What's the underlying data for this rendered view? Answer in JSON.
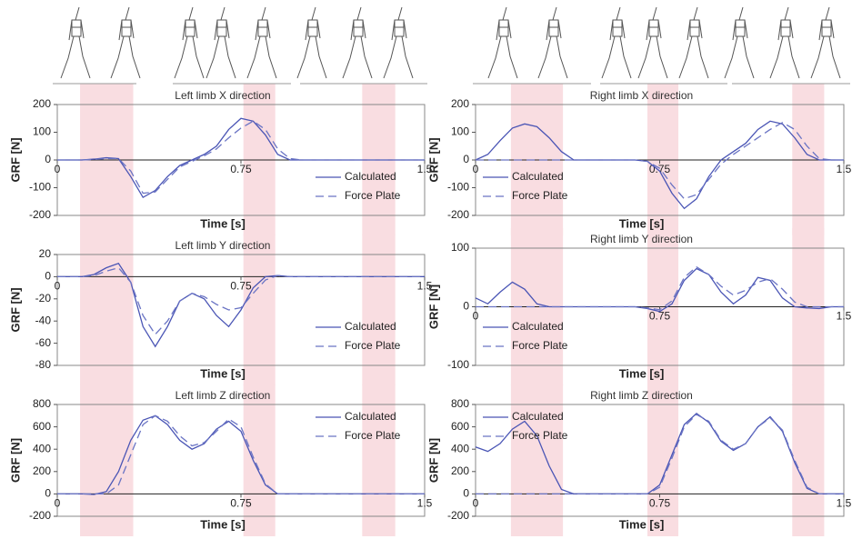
{
  "chart_data": [
    {
      "type": "line",
      "title": "Left limb X direction",
      "x_label": "Time [s]",
      "y_label": "GRF [N]",
      "x": [
        0,
        0.05,
        0.1,
        0.15,
        0.2,
        0.25,
        0.3,
        0.35,
        0.4,
        0.45,
        0.5,
        0.55,
        0.6,
        0.65,
        0.7,
        0.75,
        0.8,
        0.85,
        0.9,
        0.95,
        1,
        1.05,
        1.1,
        1.15,
        1.2,
        1.25,
        1.3,
        1.35,
        1.4,
        1.45,
        1.5
      ],
      "xlim": [
        0,
        1.5
      ],
      "xticks": [
        0,
        0.75,
        1.5
      ],
      "ylim": [
        -200,
        200
      ],
      "yticks": [
        -200,
        -100,
        0,
        100,
        200
      ],
      "legend": "lower right",
      "highlight_spans": [
        [
          0.093,
          0.31
        ],
        [
          0.76,
          0.89
        ],
        [
          1.245,
          1.38
        ]
      ],
      "highlight_color": "#f9dde1",
      "series": [
        {
          "name": "Calculated",
          "color": "#4a55b5",
          "line_style": "solid",
          "values": [
            0,
            0,
            0,
            3,
            8,
            5,
            -60,
            -135,
            -110,
            -60,
            -20,
            0,
            20,
            50,
            110,
            150,
            140,
            90,
            20,
            0,
            0,
            0,
            0,
            0,
            0,
            0,
            0,
            0,
            0,
            0,
            0
          ]
        },
        {
          "name": "Force Plate",
          "color": "#6a74c4",
          "line_style": "dashed",
          "values": [
            0,
            0,
            0,
            2,
            5,
            5,
            -40,
            -120,
            -115,
            -70,
            -25,
            -5,
            15,
            40,
            80,
            115,
            140,
            110,
            40,
            5,
            0,
            0,
            0,
            0,
            0,
            0,
            0,
            0,
            0,
            0,
            0
          ]
        }
      ]
    },
    {
      "type": "line",
      "title": "Left limb Y direction",
      "x_label": "Time [s]",
      "y_label": "GRF [N]",
      "x": [
        0,
        0.05,
        0.1,
        0.15,
        0.2,
        0.25,
        0.3,
        0.35,
        0.4,
        0.45,
        0.5,
        0.55,
        0.6,
        0.65,
        0.7,
        0.75,
        0.8,
        0.85,
        0.9,
        0.95,
        1,
        1.05,
        1.1,
        1.15,
        1.2,
        1.25,
        1.3,
        1.35,
        1.4,
        1.45,
        1.5
      ],
      "xlim": [
        0,
        1.5
      ],
      "xticks": [
        0,
        0.75,
        1.5
      ],
      "ylim": [
        -80,
        20
      ],
      "yticks": [
        -80,
        -60,
        -40,
        -20,
        0,
        20
      ],
      "legend": "lower right",
      "highlight_spans": [
        [
          0.093,
          0.31
        ],
        [
          0.76,
          0.89
        ],
        [
          1.245,
          1.38
        ]
      ],
      "highlight_color": "#f9dde1",
      "series": [
        {
          "name": "Calculated",
          "color": "#4a55b5",
          "line_style": "solid",
          "values": [
            0,
            0,
            0,
            2,
            8,
            12,
            -5,
            -45,
            -63,
            -45,
            -22,
            -15,
            -20,
            -35,
            -45,
            -30,
            -10,
            0,
            1,
            0,
            0,
            0,
            0,
            0,
            0,
            0,
            0,
            0,
            0,
            0,
            0
          ]
        },
        {
          "name": "Force Plate",
          "color": "#6a74c4",
          "line_style": "dashed",
          "values": [
            0,
            0,
            0,
            1,
            5,
            8,
            -5,
            -35,
            -52,
            -40,
            -22,
            -15,
            -18,
            -25,
            -30,
            -28,
            -15,
            -3,
            1,
            0,
            0,
            0,
            0,
            0,
            0,
            0,
            0,
            0,
            0,
            0,
            0
          ]
        }
      ]
    },
    {
      "type": "line",
      "title": "Left limb Z direction",
      "x_label": "Time [s]",
      "y_label": "GRF [N]",
      "x": [
        0,
        0.05,
        0.1,
        0.15,
        0.2,
        0.25,
        0.3,
        0.35,
        0.4,
        0.45,
        0.5,
        0.55,
        0.6,
        0.65,
        0.7,
        0.75,
        0.8,
        0.85,
        0.9,
        0.95,
        1,
        1.05,
        1.1,
        1.15,
        1.2,
        1.25,
        1.3,
        1.35,
        1.4,
        1.45,
        1.5
      ],
      "xlim": [
        0,
        1.5
      ],
      "xticks": [
        0,
        0.75,
        1.5
      ],
      "ylim": [
        -200,
        800
      ],
      "yticks": [
        -200,
        0,
        200,
        400,
        600,
        800
      ],
      "legend": "upper right",
      "highlight_spans": [
        [
          0.093,
          0.31
        ],
        [
          0.76,
          0.89
        ],
        [
          1.245,
          1.38
        ]
      ],
      "highlight_color": "#f9dde1",
      "series": [
        {
          "name": "Calculated",
          "color": "#4a55b5",
          "line_style": "solid",
          "values": [
            0,
            0,
            0,
            -5,
            20,
            200,
            480,
            660,
            700,
            620,
            480,
            400,
            450,
            580,
            650,
            560,
            300,
            80,
            0,
            0,
            0,
            0,
            0,
            0,
            0,
            0,
            0,
            0,
            0,
            0,
            0
          ]
        },
        {
          "name": "Force Plate",
          "color": "#6a74c4",
          "line_style": "dashed",
          "values": [
            0,
            0,
            0,
            0,
            0,
            80,
            350,
            620,
            700,
            650,
            520,
            430,
            460,
            560,
            670,
            600,
            330,
            90,
            0,
            0,
            0,
            0,
            0,
            0,
            0,
            0,
            0,
            0,
            0,
            0,
            0
          ]
        }
      ]
    },
    {
      "type": "line",
      "title": "Right limb X direction",
      "x_label": "Time [s]",
      "y_label": "GRF [N]",
      "x": [
        0,
        0.05,
        0.1,
        0.15,
        0.2,
        0.25,
        0.3,
        0.35,
        0.4,
        0.45,
        0.5,
        0.55,
        0.6,
        0.65,
        0.7,
        0.75,
        0.8,
        0.85,
        0.9,
        0.95,
        1,
        1.05,
        1.1,
        1.15,
        1.2,
        1.25,
        1.3,
        1.35,
        1.4,
        1.45,
        1.5
      ],
      "xlim": [
        0,
        1.5
      ],
      "xticks": [
        0,
        0.75,
        1.5
      ],
      "ylim": [
        -200,
        200
      ],
      "yticks": [
        -200,
        -100,
        0,
        100,
        200
      ],
      "legend": "lower left",
      "highlight_spans": [
        [
          0.144,
          0.356
        ],
        [
          0.7,
          0.826
        ],
        [
          1.29,
          1.42
        ]
      ],
      "highlight_color": "#f9dde1",
      "series": [
        {
          "name": "Calculated",
          "color": "#4a55b5",
          "line_style": "solid",
          "values": [
            0,
            20,
            70,
            115,
            130,
            120,
            80,
            30,
            0,
            0,
            0,
            0,
            0,
            0,
            -5,
            -40,
            -120,
            -175,
            -140,
            -60,
            0,
            30,
            60,
            110,
            140,
            130,
            80,
            20,
            0,
            0,
            0
          ]
        },
        {
          "name": "Force Plate",
          "color": "#6a74c4",
          "line_style": "dashed",
          "values": [
            0,
            0,
            0,
            0,
            0,
            0,
            0,
            0,
            0,
            0,
            0,
            0,
            0,
            0,
            -5,
            -30,
            -90,
            -140,
            -125,
            -70,
            -15,
            20,
            50,
            80,
            110,
            135,
            110,
            50,
            5,
            0,
            0
          ]
        }
      ]
    },
    {
      "type": "line",
      "title": "Right limb Y direction",
      "x_label": "Time [s]",
      "y_label": "GRF [N]",
      "x": [
        0,
        0.05,
        0.1,
        0.15,
        0.2,
        0.25,
        0.3,
        0.35,
        0.4,
        0.45,
        0.5,
        0.55,
        0.6,
        0.65,
        0.7,
        0.75,
        0.8,
        0.85,
        0.9,
        0.95,
        1,
        1.05,
        1.1,
        1.15,
        1.2,
        1.25,
        1.3,
        1.35,
        1.4,
        1.45,
        1.5
      ],
      "xlim": [
        0,
        1.5
      ],
      "xticks": [
        0,
        0.75,
        1.5
      ],
      "ylim": [
        -100,
        100
      ],
      "yticks": [
        -100,
        0,
        100
      ],
      "legend": "lower left",
      "highlight_spans": [
        [
          0.144,
          0.356
        ],
        [
          0.7,
          0.826
        ],
        [
          1.29,
          1.42
        ]
      ],
      "highlight_color": "#f9dde1",
      "series": [
        {
          "name": "Calculated",
          "color": "#4a55b5",
          "line_style": "solid",
          "values": [
            15,
            5,
            25,
            42,
            30,
            5,
            0,
            0,
            0,
            0,
            0,
            0,
            0,
            0,
            -3,
            -8,
            5,
            45,
            65,
            55,
            25,
            5,
            20,
            50,
            45,
            15,
            0,
            -2,
            -3,
            0,
            0
          ]
        },
        {
          "name": "Force Plate",
          "color": "#6a74c4",
          "line_style": "dashed",
          "values": [
            0,
            0,
            0,
            0,
            0,
            0,
            0,
            0,
            0,
            0,
            0,
            0,
            0,
            0,
            -2,
            -5,
            10,
            50,
            68,
            55,
            35,
            20,
            28,
            42,
            48,
            30,
            8,
            0,
            0,
            0,
            0
          ]
        }
      ]
    },
    {
      "type": "line",
      "title": "Right limb Z direction",
      "x_label": "Time [s]",
      "y_label": "GRF [N]",
      "x": [
        0,
        0.05,
        0.1,
        0.15,
        0.2,
        0.25,
        0.3,
        0.35,
        0.4,
        0.45,
        0.5,
        0.55,
        0.6,
        0.65,
        0.7,
        0.75,
        0.8,
        0.85,
        0.9,
        0.95,
        1,
        1.05,
        1.1,
        1.15,
        1.2,
        1.25,
        1.3,
        1.35,
        1.4,
        1.45,
        1.5
      ],
      "xlim": [
        0,
        1.5
      ],
      "xticks": [
        0,
        0.75,
        1.5
      ],
      "ylim": [
        -200,
        800
      ],
      "yticks": [
        -200,
        0,
        200,
        400,
        600,
        800
      ],
      "legend": "upper left",
      "highlight_spans": [
        [
          0.144,
          0.356
        ],
        [
          0.7,
          0.826
        ],
        [
          1.29,
          1.42
        ]
      ],
      "highlight_color": "#f9dde1",
      "series": [
        {
          "name": "Calculated",
          "color": "#4a55b5",
          "line_style": "solid",
          "values": [
            420,
            380,
            450,
            580,
            650,
            520,
            250,
            40,
            0,
            0,
            0,
            0,
            0,
            0,
            0,
            80,
            350,
            620,
            720,
            640,
            470,
            390,
            450,
            600,
            690,
            560,
            280,
            50,
            0,
            0,
            0
          ]
        },
        {
          "name": "Force Plate",
          "color": "#6a74c4",
          "line_style": "dashed",
          "values": [
            0,
            0,
            0,
            0,
            0,
            0,
            0,
            0,
            0,
            0,
            0,
            0,
            0,
            0,
            0,
            60,
            320,
            600,
            710,
            650,
            480,
            400,
            450,
            600,
            680,
            570,
            300,
            60,
            0,
            0,
            0
          ]
        }
      ]
    }
  ]
}
